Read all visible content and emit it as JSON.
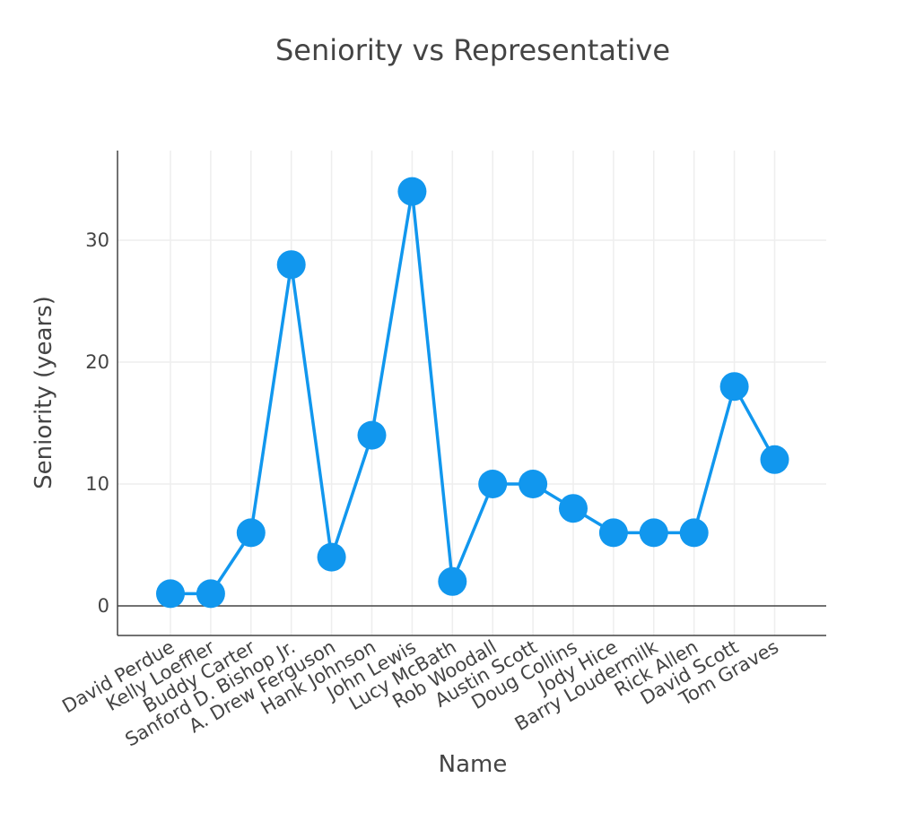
{
  "chart_data": {
    "type": "line",
    "title": "Seniority vs Representative",
    "xlabel": "Name",
    "ylabel": "Seniority (years)",
    "categories": [
      "David Perdue",
      "Kelly Loeffler",
      "Buddy Carter",
      "Sanford D. Bishop Jr.",
      "A. Drew Ferguson",
      "Hank Johnson",
      "John Lewis",
      "Lucy McBath",
      "Rob Woodall",
      "Austin Scott",
      "Doug Collins",
      "Jody Hice",
      "Barry Loudermilk",
      "Rick Allen",
      "David Scott",
      "Tom Graves"
    ],
    "values": [
      1,
      1,
      6,
      28,
      4,
      14,
      34,
      2,
      10,
      10,
      8,
      6,
      6,
      6,
      18,
      12
    ],
    "ylim": [
      -2.4,
      37.5
    ],
    "yticks": [
      0,
      10,
      20,
      30
    ],
    "grid": true,
    "marker": "circle",
    "color": "#1197ee"
  }
}
